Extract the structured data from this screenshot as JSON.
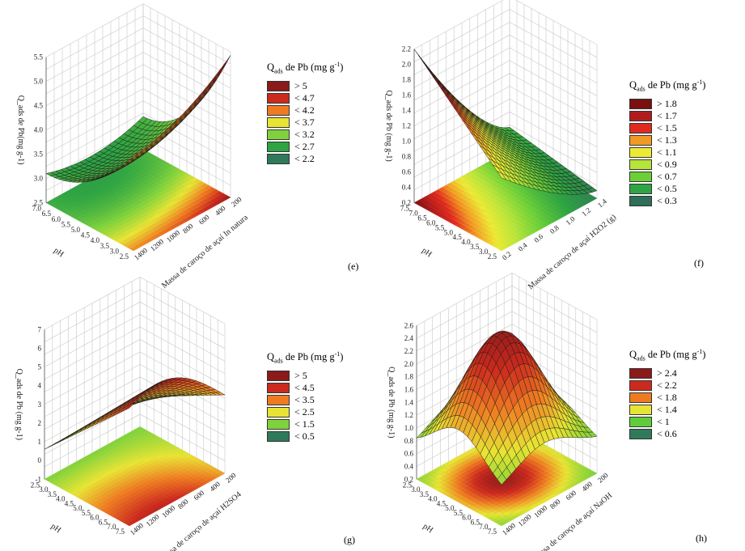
{
  "legend_title_parts": {
    "q": "Q",
    "sub": "ads",
    "mid": " de Pb (mg g",
    "sup": "-1",
    "end": ")"
  },
  "colors": {
    "dark_red": "#8b1a1a",
    "red": "#cc2a1e",
    "orange": "#ee7b22",
    "yellow": "#e8e434",
    "light_green": "#7fd23c",
    "green": "#2ea442",
    "dark_green": "#2f7a5a"
  },
  "chart_data": [
    {
      "panel": "(e)",
      "type": "surface",
      "zlabel": "Q_ads de Pb(mg g-1)",
      "xlabel": "pH",
      "ylabel": "Massa de caroço de açaí  In natura",
      "z_ticks": [
        "5.5",
        "5.0",
        "4.5",
        "4.0",
        "3.5",
        "3.0",
        "2.5"
      ],
      "x_ticks": [
        "7.0",
        "6.5",
        "6.0",
        "5.5",
        "5.0",
        "4.5",
        "4.0",
        "3.5",
        "3.0",
        "2.5"
      ],
      "y_ticks": [
        "200",
        "400",
        "600",
        "800",
        "1000",
        "1200",
        "1400"
      ],
      "legend": [
        {
          "label": "> 5",
          "color": "#8b1a1a"
        },
        {
          "label": "< 4.7",
          "color": "#cc2a1e"
        },
        {
          "label": "< 4.2",
          "color": "#ee7b22"
        },
        {
          "label": "< 3.7",
          "color": "#e8e434"
        },
        {
          "label": "< 3.2",
          "color": "#7fd23c"
        },
        {
          "label": "< 2.7",
          "color": "#2ea442"
        },
        {
          "label": "< 2.2",
          "color": "#2f7a5a"
        }
      ]
    },
    {
      "panel": "(f)",
      "type": "surface",
      "zlabel": "Q_ads de Pb (mg g-1)",
      "xlabel": "pH",
      "ylabel": "Massa de caroço de açaí H2O2 (g)",
      "z_ticks": [
        "2.2",
        "2.0",
        "1.8",
        "1.6",
        "1.4",
        "1.2",
        "1.0",
        "0.8",
        "0.6",
        "0.4",
        "0.2"
      ],
      "x_ticks": [
        "7.5",
        "7.0",
        "6.5",
        "6.0",
        "5.5",
        "5.0",
        "4.5",
        "4.0",
        "3.5",
        "3.0",
        "2.5"
      ],
      "y_ticks": [
        "1.4",
        "1.2",
        "1.0",
        "0.8",
        "0.6",
        "0.4",
        "0.2"
      ],
      "legend": [
        {
          "label": "> 1.8",
          "color": "#7a0f0f"
        },
        {
          "label": "< 1.7",
          "color": "#b01c1c"
        },
        {
          "label": "< 1.5",
          "color": "#e02a1e"
        },
        {
          "label": "< 1.3",
          "color": "#f29a24"
        },
        {
          "label": "< 1.1",
          "color": "#ecea36"
        },
        {
          "label": "< 0.9",
          "color": "#b6e43a"
        },
        {
          "label": "< 0.7",
          "color": "#6ccf38"
        },
        {
          "label": "< 0.5",
          "color": "#2ea442"
        },
        {
          "label": "< 0.3",
          "color": "#2f6e57"
        }
      ]
    },
    {
      "panel": "(g)",
      "type": "surface",
      "zlabel": "Q_ads de Pb (mg g-1)",
      "xlabel": "pH",
      "ylabel": "Massa de caroço de açaí H2SO4",
      "z_ticks": [
        "7",
        "6",
        "5",
        "4",
        "3",
        "2",
        "1",
        "0",
        "-1"
      ],
      "x_ticks": [
        "2.5",
        "3.0",
        "3.5",
        "4.0",
        "4.5",
        "5.0",
        "5.5",
        "6.0",
        "6.5",
        "7.0",
        "7.5"
      ],
      "y_ticks": [
        "200",
        "400",
        "600",
        "800",
        "1000",
        "1200",
        "1400"
      ],
      "legend": [
        {
          "label": "> 5",
          "color": "#8b1a1a"
        },
        {
          "label": "< 4.5",
          "color": "#cc2a1e"
        },
        {
          "label": "< 3.5",
          "color": "#ee7b22"
        },
        {
          "label": "< 2.5",
          "color": "#e8e434"
        },
        {
          "label": "< 1.5",
          "color": "#7fd23c"
        },
        {
          "label": "< 0.5",
          "color": "#2f7a5a"
        }
      ]
    },
    {
      "panel": "(h)",
      "type": "surface",
      "zlabel": "Q_ads de Pb (mg g-1)",
      "xlabel": "pH",
      "ylabel": "Massa de caroço de açaí NaOH",
      "z_ticks": [
        "2.6",
        "2.4",
        "2.2",
        "2.0",
        "1.8",
        "1.6",
        "1.4",
        "1.2",
        "1.0",
        "0.8",
        "0.6",
        "0.4",
        "0.2"
      ],
      "x_ticks": [
        "2.5",
        "3.0",
        "3.5",
        "4.0",
        "4.5",
        "5.0",
        "5.5",
        "6.0",
        "6.5",
        "7.0",
        "7.5"
      ],
      "y_ticks": [
        "200",
        "400",
        "600",
        "800",
        "1000",
        "1200",
        "1400"
      ],
      "legend": [
        {
          "label": "> 2.4",
          "color": "#8b1a1a"
        },
        {
          "label": "< 2.2",
          "color": "#cc2a1e"
        },
        {
          "label": "< 1.8",
          "color": "#ee7b22"
        },
        {
          "label": "< 1.4",
          "color": "#e8e434"
        },
        {
          "label": "< 1",
          "color": "#5fcd3a"
        },
        {
          "label": "< 0.6",
          "color": "#2f7a5a"
        }
      ]
    }
  ]
}
